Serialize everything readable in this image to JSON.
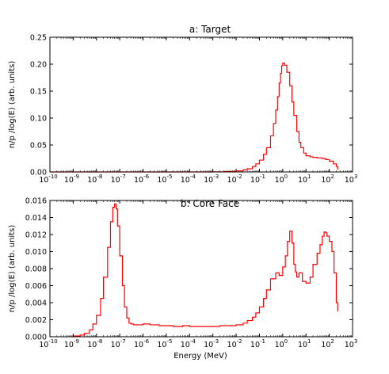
{
  "figure": {
    "ylabel": "n/p /log(E) (arb. units)",
    "xlabel": "Energy (MeV)"
  },
  "colors": {
    "series": "#ff0000",
    "axes": "#000000",
    "background": "#ffffff"
  },
  "chart_data": [
    {
      "type": "line",
      "title": "a: Target",
      "xlabel": "",
      "ylabel": "n/p /log(E) (arb. units)",
      "xscale": "log",
      "xlim": [
        1e-10,
        1000
      ],
      "ylim": [
        0,
        0.25
      ],
      "grid": false,
      "xticks": [
        {
          "value": 1e-10,
          "base": "10",
          "exp": "-10"
        },
        {
          "value": 1e-09,
          "base": "10",
          "exp": "-9"
        },
        {
          "value": 1e-08,
          "base": "10",
          "exp": "-8"
        },
        {
          "value": 1e-07,
          "base": "10",
          "exp": "-7"
        },
        {
          "value": 1e-06,
          "base": "10",
          "exp": "-6"
        },
        {
          "value": 1e-05,
          "base": "10",
          "exp": "-5"
        },
        {
          "value": 0.0001,
          "base": "10",
          "exp": "-4"
        },
        {
          "value": 0.001,
          "base": "10",
          "exp": "-3"
        },
        {
          "value": 0.01,
          "base": "10",
          "exp": "-2"
        },
        {
          "value": 0.1,
          "base": "10",
          "exp": "-1"
        },
        {
          "value": 1,
          "base": "10",
          "exp": "0"
        },
        {
          "value": 10,
          "base": "10",
          "exp": "1"
        },
        {
          "value": 100,
          "base": "10",
          "exp": "2"
        },
        {
          "value": 1000,
          "base": "10",
          "exp": "3"
        }
      ],
      "yticks": [
        {
          "value": 0,
          "label": "0.00"
        },
        {
          "value": 0.05,
          "label": "0.05"
        },
        {
          "value": 0.1,
          "label": "0.10"
        },
        {
          "value": 0.15,
          "label": "0.15"
        },
        {
          "value": 0.2,
          "label": "0.20"
        },
        {
          "value": 0.25,
          "label": "0.25"
        }
      ],
      "series": [
        {
          "style": "step",
          "x": [
            1e-10,
            1e-08,
            1e-06,
            0.0001,
            0.001,
            0.003,
            0.01,
            0.02,
            0.03,
            0.05,
            0.07,
            0.1,
            0.15,
            0.2,
            0.3,
            0.4,
            0.5,
            0.6,
            0.7,
            0.8,
            0.9,
            1.0,
            1.2,
            1.5,
            2.0,
            2.5,
            3.0,
            4.0,
            5.0,
            6.0,
            8.0,
            10,
            15,
            20,
            30,
            50,
            70,
            100,
            150,
            200,
            230
          ],
          "y": [
            0,
            0,
            0,
            0,
            0.0003,
            0.0008,
            0.002,
            0.004,
            0.006,
            0.01,
            0.015,
            0.022,
            0.033,
            0.045,
            0.067,
            0.09,
            0.115,
            0.14,
            0.165,
            0.183,
            0.197,
            0.202,
            0.198,
            0.185,
            0.16,
            0.13,
            0.105,
            0.075,
            0.055,
            0.045,
            0.035,
            0.03,
            0.028,
            0.027,
            0.026,
            0.025,
            0.023,
            0.02,
            0.015,
            0.01,
            0.004
          ]
        }
      ]
    },
    {
      "type": "line",
      "title": "b: Core Face",
      "xlabel": "Energy (MeV)",
      "ylabel": "n/p /log(E) (arb. units)",
      "xscale": "log",
      "xlim": [
        1e-10,
        1000
      ],
      "ylim": [
        0,
        0.016
      ],
      "grid": false,
      "xticks": [
        {
          "value": 1e-10,
          "base": "10",
          "exp": "-10"
        },
        {
          "value": 1e-09,
          "base": "10",
          "exp": "-9"
        },
        {
          "value": 1e-08,
          "base": "10",
          "exp": "-8"
        },
        {
          "value": 1e-07,
          "base": "10",
          "exp": "-7"
        },
        {
          "value": 1e-06,
          "base": "10",
          "exp": "-6"
        },
        {
          "value": 1e-05,
          "base": "10",
          "exp": "-5"
        },
        {
          "value": 0.0001,
          "base": "10",
          "exp": "-4"
        },
        {
          "value": 0.001,
          "base": "10",
          "exp": "-3"
        },
        {
          "value": 0.01,
          "base": "10",
          "exp": "-2"
        },
        {
          "value": 0.1,
          "base": "10",
          "exp": "-1"
        },
        {
          "value": 1,
          "base": "10",
          "exp": "0"
        },
        {
          "value": 10,
          "base": "10",
          "exp": "1"
        },
        {
          "value": 100,
          "base": "10",
          "exp": "2"
        },
        {
          "value": 1000,
          "base": "10",
          "exp": "3"
        }
      ],
      "yticks": [
        {
          "value": 0,
          "label": "0.000"
        },
        {
          "value": 0.002,
          "label": "0.002"
        },
        {
          "value": 0.004,
          "label": "0.004"
        },
        {
          "value": 0.006,
          "label": "0.006"
        },
        {
          "value": 0.008,
          "label": "0.008"
        },
        {
          "value": 0.01,
          "label": "0.010"
        },
        {
          "value": 0.012,
          "label": "0.012"
        },
        {
          "value": 0.014,
          "label": "0.014"
        },
        {
          "value": 0.016,
          "label": "0.016"
        }
      ],
      "series": [
        {
          "style": "step",
          "x": [
            1e-09,
            2e-09,
            3e-09,
            5e-09,
            7e-09,
            1e-08,
            1.5e-08,
            2e-08,
            3e-08,
            4e-08,
            5e-08,
            6e-08,
            7e-08,
            8e-08,
            1e-07,
            1.3e-07,
            1.6e-07,
            2e-07,
            2.5e-07,
            3e-07,
            4e-07,
            6e-07,
            1e-06,
            2e-06,
            5e-06,
            1e-05,
            2e-05,
            5e-05,
            0.0001,
            0.0002,
            0.0005,
            0.001,
            0.002,
            0.005,
            0.01,
            0.02,
            0.03,
            0.05,
            0.07,
            0.1,
            0.15,
            0.2,
            0.3,
            0.5,
            0.7,
            1.0,
            1.3,
            1.6,
            2.0,
            2.5,
            3.0,
            3.5,
            4.0,
            5.0,
            7.0,
            10,
            15,
            20,
            30,
            40,
            50,
            60,
            70,
            80,
            100,
            130,
            160,
            200,
            230
          ],
          "y": [
            0.0001,
            0.0002,
            0.0004,
            0.0008,
            0.0015,
            0.0025,
            0.0045,
            0.007,
            0.0105,
            0.0135,
            0.0152,
            0.0156,
            0.015,
            0.013,
            0.0095,
            0.006,
            0.0035,
            0.0022,
            0.0016,
            0.0015,
            0.0014,
            0.0014,
            0.0015,
            0.0014,
            0.0013,
            0.0013,
            0.0012,
            0.0013,
            0.0012,
            0.0012,
            0.0012,
            0.0012,
            0.0013,
            0.0013,
            0.0014,
            0.0016,
            0.0019,
            0.0023,
            0.0028,
            0.0035,
            0.0045,
            0.0055,
            0.0068,
            0.0075,
            0.0072,
            0.0082,
            0.0095,
            0.0112,
            0.0124,
            0.011,
            0.0085,
            0.0076,
            0.007,
            0.0075,
            0.0065,
            0.0063,
            0.007,
            0.0085,
            0.0098,
            0.0108,
            0.0118,
            0.0123,
            0.0122,
            0.0118,
            0.0112,
            0.01,
            0.0075,
            0.004,
            0.003
          ]
        }
      ]
    }
  ]
}
